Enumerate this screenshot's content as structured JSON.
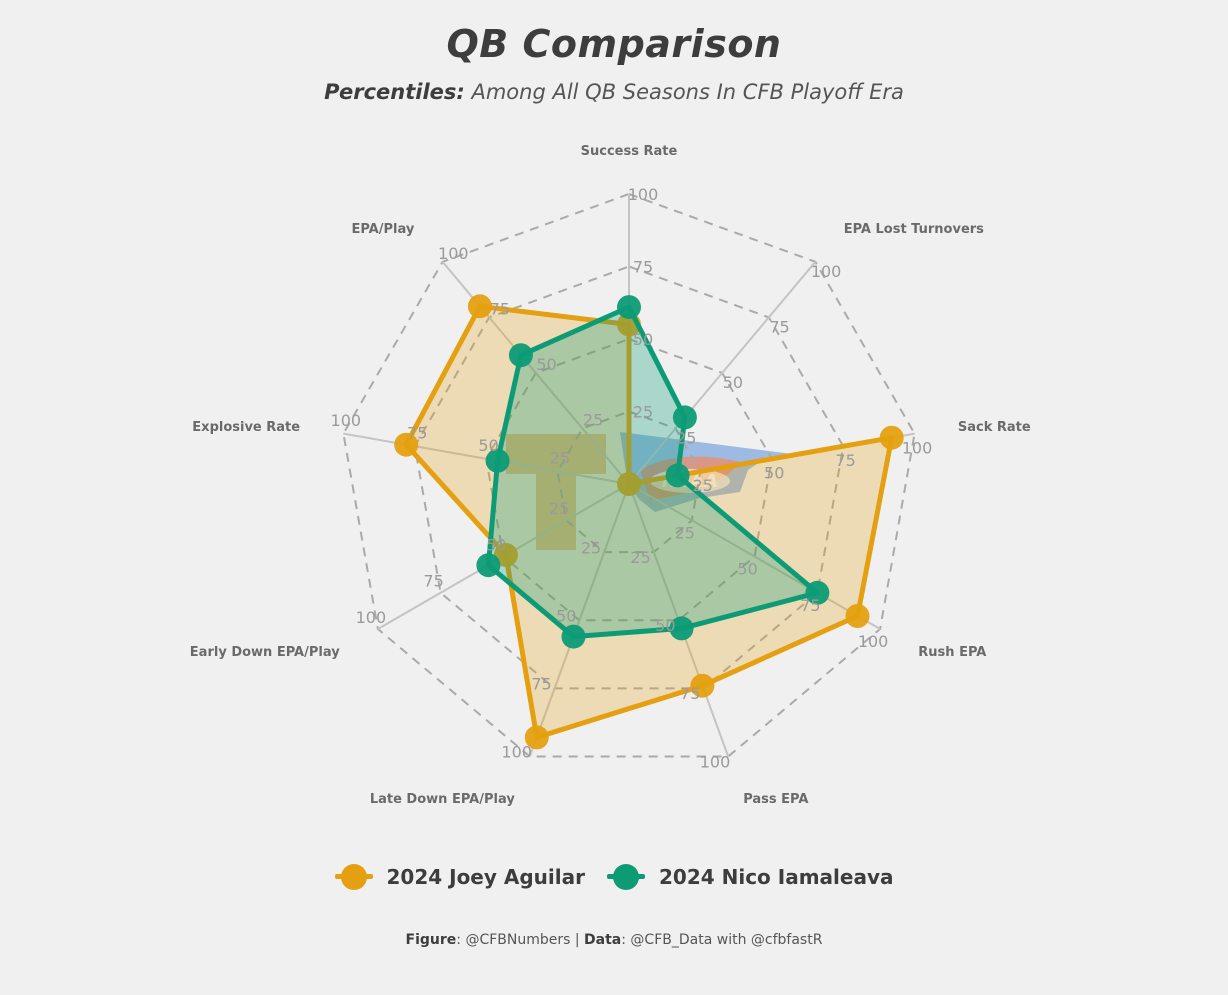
{
  "header": {
    "title": "QB Comparison",
    "subtitle_bold": "Percentiles:",
    "subtitle_rest": " Among All QB Seasons In CFB Playoff Era"
  },
  "chart_data": {
    "type": "radar",
    "axes": [
      "Success Rate",
      "EPA Lost Turnovers",
      "Sack Rate",
      "Rush EPA",
      "Pass EPA",
      "Late Down EPA/Play",
      "Early Down EPA/Play",
      "Explosive Rate",
      "EPA/Play"
    ],
    "rlim": [
      0,
      100
    ],
    "ticks": [
      25,
      50,
      75,
      100
    ],
    "grid": true,
    "legend_position": "bottom",
    "series": [
      {
        "name": "2024 Joey Aguilar",
        "color": "#e4a010",
        "values": [
          55,
          0,
          92,
          91,
          74,
          93,
          49,
          78,
          80
        ]
      },
      {
        "name": "2024 Nico Iamaleava",
        "color": "#0d9b76",
        "values": [
          61,
          30,
          17,
          75,
          53,
          56,
          56,
          46,
          58
        ]
      }
    ]
  },
  "legend": {
    "items": [
      {
        "label": "2024 Joey Aguilar",
        "color": "#e4a010"
      },
      {
        "label": "2024 Nico Iamaleava",
        "color": "#0d9b76"
      }
    ]
  },
  "caption": {
    "figure_label": "Figure",
    "figure_value": ": @CFBNumbers | ",
    "data_label": "Data",
    "data_value": ": @CFB_Data with @cfbfastR"
  },
  "watermarks": {
    "team_logo": "tennessee-t-logo",
    "league_logo": "NCAA"
  }
}
